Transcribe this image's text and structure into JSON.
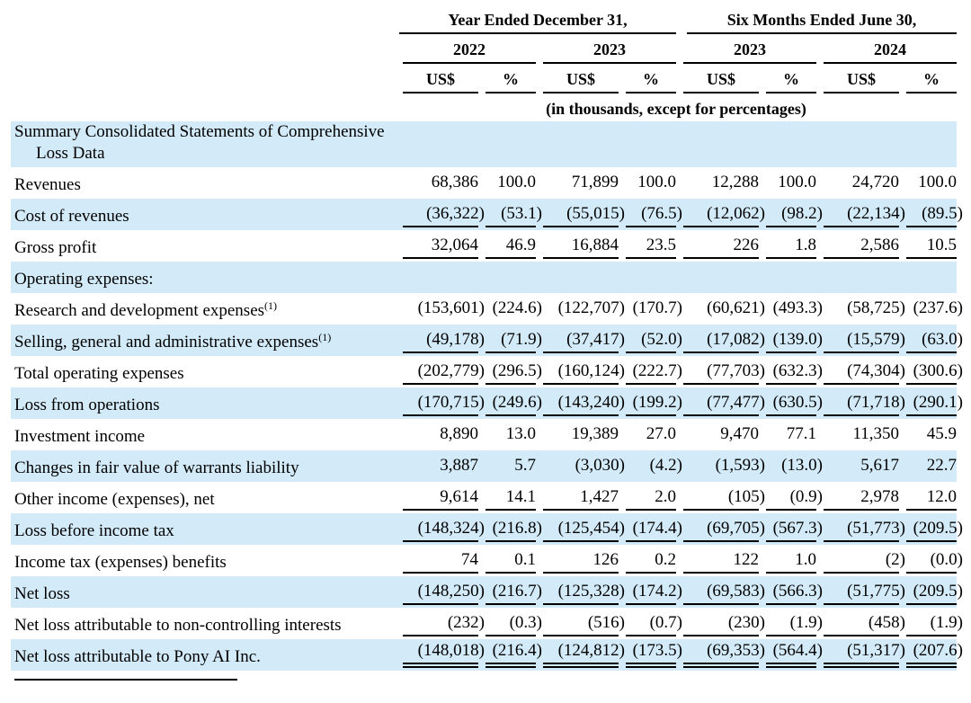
{
  "table": {
    "period_groups": [
      {
        "label": "Year Ended December 31,"
      },
      {
        "label": "Six Months Ended June 30,"
      }
    ],
    "year_headers": [
      "2022",
      "2023",
      "2023",
      "2024"
    ],
    "col_headers": [
      "US$",
      "%",
      "US$",
      "%",
      "US$",
      "%",
      "US$",
      "%"
    ],
    "units_note": "(in thousands, except for percentages)",
    "rows": [
      {
        "label": "Summary Consolidated Statements of Comprehensive\nLoss Data",
        "sup": "",
        "bold": true,
        "shaded": true,
        "underline": "none",
        "values": []
      },
      {
        "label": "Revenues",
        "sup": "",
        "bold": false,
        "shaded": false,
        "underline": "none",
        "values": [
          "68,386",
          "100.0",
          "71,899",
          "100.0",
          "12,288",
          "100.0",
          "24,720",
          "100.0"
        ]
      },
      {
        "label": "Cost of revenues",
        "sup": "",
        "bold": false,
        "shaded": true,
        "underline": "single",
        "values": [
          "(36,322)",
          "(53.1)",
          "(55,015)",
          "(76.5)",
          "(12,062)",
          "(98.2)",
          "(22,134)",
          "(89.5)"
        ]
      },
      {
        "label": "Gross profit",
        "sup": "",
        "bold": true,
        "shaded": false,
        "underline": "single",
        "values": [
          "32,064",
          "46.9",
          "16,884",
          "23.5",
          "226",
          "1.8",
          "2,586",
          "10.5"
        ]
      },
      {
        "label": "Operating expenses:",
        "sup": "",
        "bold": true,
        "shaded": true,
        "underline": "none",
        "values": []
      },
      {
        "label": "Research and development expenses",
        "sup": "(1)",
        "bold": false,
        "shaded": false,
        "underline": "none",
        "values": [
          "(153,601)",
          "(224.6)",
          "(122,707)",
          "(170.7)",
          "(60,621)",
          "(493.3)",
          "(58,725)",
          "(237.6)"
        ]
      },
      {
        "label": "Selling, general and administrative expenses",
        "sup": "(1)",
        "bold": false,
        "shaded": true,
        "underline": "single",
        "values": [
          "(49,178)",
          "(71.9)",
          "(37,417)",
          "(52.0)",
          "(17,082)",
          "(139.0)",
          "(15,579)",
          "(63.0)"
        ]
      },
      {
        "label": "Total operating expenses",
        "sup": "",
        "bold": true,
        "shaded": false,
        "underline": "single",
        "values": [
          "(202,779)",
          "(296.5)",
          "(160,124)",
          "(222.7)",
          "(77,703)",
          "(632.3)",
          "(74,304)",
          "(300.6)"
        ]
      },
      {
        "label": "Loss from operations",
        "sup": "",
        "bold": true,
        "shaded": true,
        "underline": "single",
        "values": [
          "(170,715)",
          "(249.6)",
          "(143,240)",
          "(199.2)",
          "(77,477)",
          "(630.5)",
          "(71,718)",
          "(290.1)"
        ]
      },
      {
        "label": "Investment income",
        "sup": "",
        "bold": false,
        "shaded": false,
        "underline": "none",
        "values": [
          "8,890",
          "13.0",
          "19,389",
          "27.0",
          "9,470",
          "77.1",
          "11,350",
          "45.9"
        ]
      },
      {
        "label": "Changes in fair value of warrants liability",
        "sup": "",
        "bold": false,
        "shaded": true,
        "underline": "none",
        "values": [
          "3,887",
          "5.7",
          "(3,030)",
          "(4.2)",
          "(1,593)",
          "(13.0)",
          "5,617",
          "22.7"
        ]
      },
      {
        "label": "Other income (expenses), net",
        "sup": "",
        "bold": false,
        "shaded": false,
        "underline": "single",
        "values": [
          "9,614",
          "14.1",
          "1,427",
          "2.0",
          "(105)",
          "(0.9)",
          "2,978",
          "12.0"
        ]
      },
      {
        "label": "Loss before income tax",
        "sup": "",
        "bold": true,
        "shaded": true,
        "underline": "single",
        "values": [
          "(148,324)",
          "(216.8)",
          "(125,454)",
          "(174.4)",
          "(69,705)",
          "(567.3)",
          "(51,773)",
          "(209.5)"
        ]
      },
      {
        "label": "Income tax (expenses) benefits",
        "sup": "",
        "bold": false,
        "shaded": false,
        "underline": "single",
        "values": [
          "74",
          "0.1",
          "126",
          "0.2",
          "122",
          "1.0",
          "(2)",
          "(0.0)"
        ]
      },
      {
        "label": "Net loss",
        "sup": "",
        "bold": true,
        "shaded": true,
        "underline": "single",
        "values": [
          "(148,250)",
          "(216.7)",
          "(125,328)",
          "(174.2)",
          "(69,583)",
          "(566.3)",
          "(51,775)",
          "(209.5)"
        ]
      },
      {
        "label": "Net loss attributable to non-controlling interests",
        "sup": "",
        "bold": false,
        "shaded": false,
        "underline": "single",
        "values": [
          "(232)",
          "(0.3)",
          "(516)",
          "(0.7)",
          "(230)",
          "(1.9)",
          "(458)",
          "(1.9)"
        ]
      },
      {
        "label": "Net loss attributable to Pony AI Inc.",
        "sup": "",
        "bold": true,
        "shaded": true,
        "underline": "double",
        "values": [
          "(148,018)",
          "(216.4)",
          "(124,812)",
          "(173.5)",
          "(69,353)",
          "(564.4)",
          "(51,317)",
          "(207.6)"
        ]
      }
    ]
  },
  "colors": {
    "row_shade": "#d3eaf8",
    "rule": "#000000",
    "text": "#000000"
  }
}
